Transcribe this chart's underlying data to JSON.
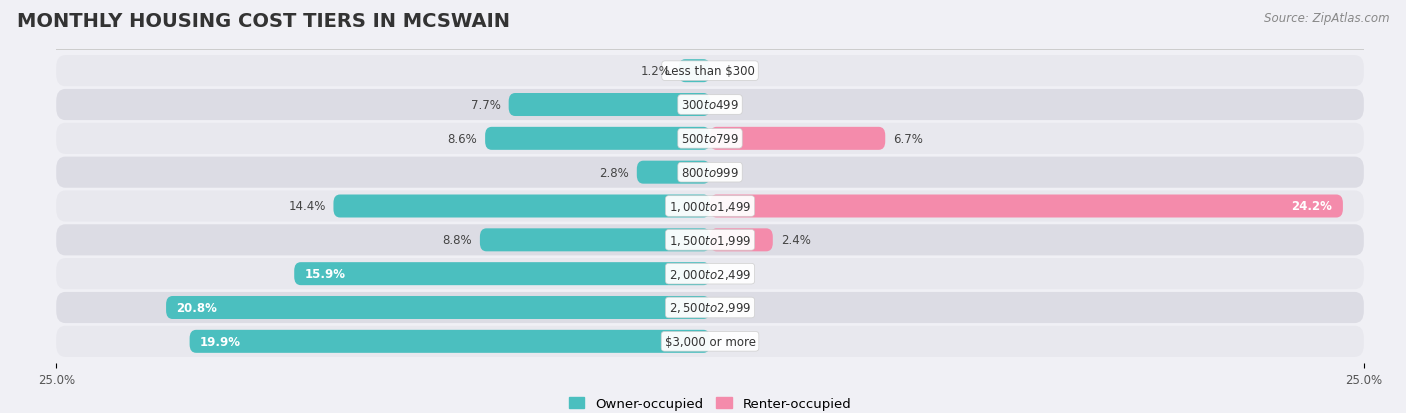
{
  "title": "MONTHLY HOUSING COST TIERS IN MCSWAIN",
  "source": "Source: ZipAtlas.com",
  "categories": [
    "Less than $300",
    "$300 to $499",
    "$500 to $799",
    "$800 to $999",
    "$1,000 to $1,499",
    "$1,500 to $1,999",
    "$2,000 to $2,499",
    "$2,500 to $2,999",
    "$3,000 or more"
  ],
  "owner_values": [
    1.2,
    7.7,
    8.6,
    2.8,
    14.4,
    8.8,
    15.9,
    20.8,
    19.9
  ],
  "renter_values": [
    0.0,
    0.0,
    6.7,
    0.0,
    24.2,
    2.4,
    0.0,
    0.0,
    0.0
  ],
  "owner_color": "#4BBFBF",
  "renter_color": "#F48BAB",
  "background_color": "#f0f0f5",
  "row_bg_color": "#e8e8ee",
  "axis_limit": 25.0,
  "title_fontsize": 14,
  "source_fontsize": 8.5,
  "label_fontsize": 8.5,
  "category_fontsize": 8.5,
  "legend_fontsize": 9.5
}
